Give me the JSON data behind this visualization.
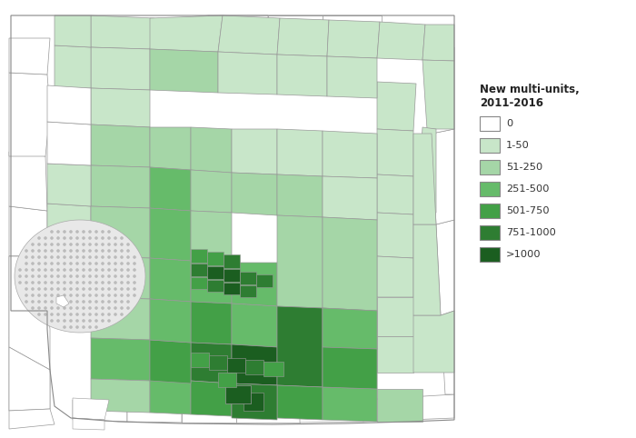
{
  "colors": {
    "0": "#FFFFFF",
    "1-50": "#c8e6c9",
    "51-250": "#a5d6a7",
    "251-500": "#66bb6a",
    "501-750": "#43a047",
    "751-1000": "#2e7d32",
    ">1000": "#1b5e20"
  },
  "legend_title_line1": "New multi-units,",
  "legend_title_line2": "2011-2016",
  "legend_items": [
    [
      "#FFFFFF",
      "0"
    ],
    [
      "#c8e6c9",
      "1-50"
    ],
    [
      "#a5d6a7",
      "51-250"
    ],
    [
      "#66bb6a",
      "251-500"
    ],
    [
      "#43a047",
      "501-750"
    ],
    [
      "#2e7d32",
      "751-1000"
    ],
    [
      "#1b5e20",
      ">1000"
    ]
  ],
  "bg_color": "#FFFFFF",
  "border_color": "#999999",
  "water_fill": "#e8e8e8",
  "water_dot": "#bbbbbb",
  "map_border": "#cccccc"
}
